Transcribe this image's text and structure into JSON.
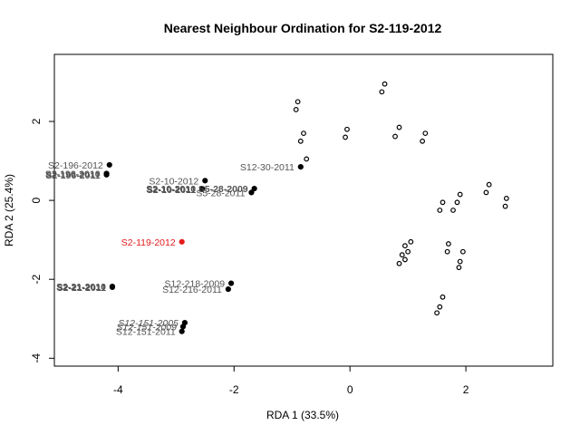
{
  "chart_data": {
    "type": "scatter",
    "title": "Nearest Neighbour Ordination for S2-119-2012",
    "xlabel": "RDA 1 (33.5%)",
    "ylabel": "RDA 2 (25.4%)",
    "xlim": [
      -5.1,
      3.5
    ],
    "ylim": [
      -4.2,
      3.7
    ],
    "xticks": [
      -4,
      -2,
      0,
      2
    ],
    "yticks": [
      -4,
      -2,
      0,
      2
    ],
    "grid": false,
    "legend": "none",
    "colors": {
      "highlight": "#e41a1c",
      "neighbour": "#000000",
      "label": "#555555"
    },
    "labeled_points": [
      {
        "x": -4.15,
        "y": 0.9,
        "label": "S2-196-2012",
        "style": "normal",
        "fill": "neighbour"
      },
      {
        "x": -4.2,
        "y": 0.65,
        "label": "S2-196-2011",
        "style": "bold",
        "fill": "neighbour"
      },
      {
        "x": -4.2,
        "y": 0.68,
        "label": "S2-196-2010",
        "style": "bold",
        "fill": "neighbour"
      },
      {
        "x": -2.5,
        "y": 0.5,
        "label": "S2-10-2012",
        "style": "normal",
        "fill": "neighbour"
      },
      {
        "x": -2.55,
        "y": 0.28,
        "label": "S2-10-2011",
        "style": "bold",
        "fill": "neighbour"
      },
      {
        "x": -2.55,
        "y": 0.3,
        "label": "S2-10-2010",
        "style": "bold",
        "fill": "neighbour"
      },
      {
        "x": -1.65,
        "y": 0.3,
        "label": "S5-28-2009",
        "style": "bold",
        "fill": "neighbour"
      },
      {
        "x": -1.7,
        "y": 0.2,
        "label": "S5-28-2011",
        "style": "normal",
        "fill": "neighbour"
      },
      {
        "x": -0.85,
        "y": 0.85,
        "label": "S12-30-2011",
        "style": "normal",
        "fill": "neighbour"
      },
      {
        "x": -2.9,
        "y": -1.05,
        "label": "S2-119-2012",
        "style": "normal",
        "fill": "highlight"
      },
      {
        "x": -4.1,
        "y": -2.2,
        "label": "S2-21-2011",
        "style": "bold",
        "fill": "neighbour"
      },
      {
        "x": -4.1,
        "y": -2.18,
        "label": "S2-21-2010",
        "style": "bold",
        "fill": "neighbour"
      },
      {
        "x": -2.05,
        "y": -2.1,
        "label": "S12-218-2009",
        "style": "normal",
        "fill": "neighbour"
      },
      {
        "x": -2.1,
        "y": -2.25,
        "label": "S12-216-2011",
        "style": "normal",
        "fill": "neighbour"
      },
      {
        "x": -2.85,
        "y": -3.1,
        "label": "S12-151-2005",
        "style": "italic",
        "fill": "neighbour"
      },
      {
        "x": -2.88,
        "y": -3.2,
        "label": "S12-151-2009",
        "style": "italic",
        "fill": "neighbour"
      },
      {
        "x": -2.9,
        "y": -3.32,
        "label": "S12-151-2011",
        "style": "normal",
        "fill": "neighbour"
      }
    ],
    "other_points": [
      {
        "x": -0.9,
        "y": 2.5
      },
      {
        "x": -0.93,
        "y": 2.3
      },
      {
        "x": -0.8,
        "y": 1.7
      },
      {
        "x": -0.85,
        "y": 1.5
      },
      {
        "x": -0.75,
        "y": 1.05
      },
      {
        "x": -0.05,
        "y": 1.8
      },
      {
        "x": -0.08,
        "y": 1.6
      },
      {
        "x": 0.6,
        "y": 2.95
      },
      {
        "x": 0.55,
        "y": 2.75
      },
      {
        "x": 0.85,
        "y": 1.85
      },
      {
        "x": 0.78,
        "y": 1.62
      },
      {
        "x": 1.3,
        "y": 1.7
      },
      {
        "x": 1.25,
        "y": 1.5
      },
      {
        "x": 1.6,
        "y": -0.05
      },
      {
        "x": 1.55,
        "y": -0.25
      },
      {
        "x": 1.85,
        "y": -0.05
      },
      {
        "x": 1.9,
        "y": 0.15
      },
      {
        "x": 1.78,
        "y": -0.25
      },
      {
        "x": 2.4,
        "y": 0.4
      },
      {
        "x": 2.35,
        "y": 0.2
      },
      {
        "x": 2.7,
        "y": 0.05
      },
      {
        "x": 2.68,
        "y": -0.15
      },
      {
        "x": 1.7,
        "y": -1.1
      },
      {
        "x": 1.68,
        "y": -1.3
      },
      {
        "x": 1.95,
        "y": -1.3
      },
      {
        "x": 1.9,
        "y": -1.55
      },
      {
        "x": 1.88,
        "y": -1.7
      },
      {
        "x": 1.05,
        "y": -1.05
      },
      {
        "x": 0.95,
        "y": -1.15
      },
      {
        "x": 1.0,
        "y": -1.3
      },
      {
        "x": 0.9,
        "y": -1.38
      },
      {
        "x": 0.95,
        "y": -1.5
      },
      {
        "x": 0.85,
        "y": -1.6
      },
      {
        "x": 1.6,
        "y": -2.45
      },
      {
        "x": 1.55,
        "y": -2.7
      },
      {
        "x": 1.5,
        "y": -2.85
      }
    ]
  }
}
